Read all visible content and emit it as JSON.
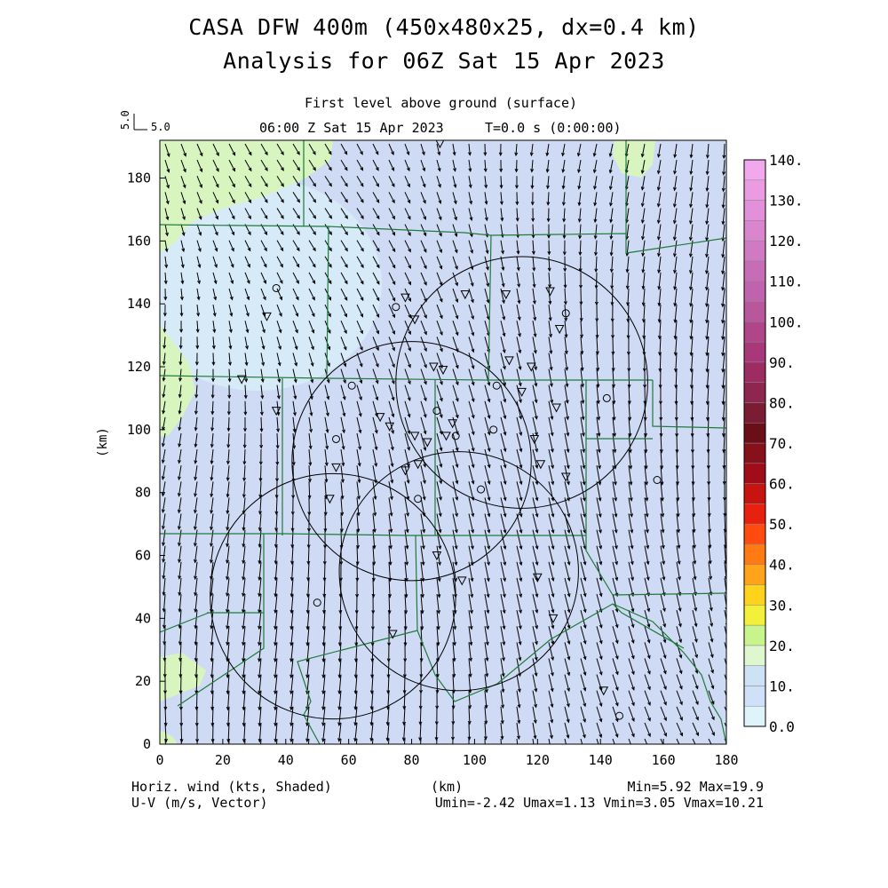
{
  "title_line1": "CASA DFW 400m (450x480x25, dx=0.4 km)",
  "title_line2": "Analysis for 06Z Sat 15 Apr 2023",
  "level_label": "First level above ground (surface)",
  "time_label": "06:00 Z Sat 15 Apr 2023",
  "time_step": "T=0.0 s (0:00:00)",
  "ref_vector": {
    "axis_value": "5.0",
    "label": "5.0"
  },
  "x_axis": {
    "label": "(km)",
    "ticks": [
      "0",
      "20",
      "40",
      "60",
      "80",
      "100",
      "120",
      "140",
      "160",
      "180"
    ],
    "range": [
      0,
      180
    ]
  },
  "y_axis": {
    "label": "(km)",
    "ticks": [
      "0",
      "20",
      "40",
      "60",
      "80",
      "100",
      "120",
      "140",
      "160",
      "180"
    ],
    "range": [
      0,
      192
    ]
  },
  "colorbar": {
    "ticks": [
      "0.0",
      "10.",
      "20.",
      "30.",
      "40.",
      "50.",
      "60.",
      "70.",
      "80.",
      "90.",
      "100.",
      "110.",
      "120.",
      "130.",
      "140."
    ],
    "colors": [
      "#dff3fb",
      "#cfe0f8",
      "#cde2f5",
      "#dff7cf",
      "#c8f48c",
      "#f2f03a",
      "#ffd21c",
      "#ffa31a",
      "#ff7a12",
      "#ff4a10",
      "#e82010",
      "#c81410",
      "#a00d18",
      "#86111a",
      "#6a0e18",
      "#7a1c34",
      "#8e2650",
      "#9c2c62",
      "#a8387a",
      "#b0458a",
      "#b8579c",
      "#c062ad",
      "#c86cb8",
      "#d07ac4",
      "#da86cf",
      "#e290d9",
      "#ea9be2",
      "#f2a8ec"
    ]
  },
  "footer_left_1": "Horiz. wind (kts, Shaded)",
  "footer_left_2": "U-V (m/s, Vector)",
  "footer_center": "(km)",
  "footer_right_1": "Min=5.92 Max=19.9",
  "footer_right_2": "Umin=-2.42 Umax=1.13 Vmin=3.05 Vmax=10.21",
  "field": {
    "min": 5.92,
    "max": 19.9,
    "umin": -2.42,
    "umax": 1.13,
    "vmin": 3.05,
    "vmax": 10.21
  },
  "field_colors": {
    "base": "#cfdaf5",
    "light": "#d6eaf8",
    "green": "#d8f5c0",
    "boundary": "#1f7a3a",
    "vectors": "#000000"
  },
  "radar_rings": [
    {
      "cx": 115,
      "cy": 115,
      "r": 40
    },
    {
      "cx": 80,
      "cy": 90,
      "r": 38
    },
    {
      "cx": 95,
      "cy": 55,
      "r": 38
    },
    {
      "cx": 55,
      "cy": 47,
      "r": 39
    }
  ],
  "stations": [
    {
      "x": 37,
      "y": 145,
      "s": "circle"
    },
    {
      "x": 34,
      "y": 136,
      "s": "tri"
    },
    {
      "x": 26,
      "y": 116,
      "s": "tri"
    },
    {
      "x": 37,
      "y": 106,
      "s": "tri"
    },
    {
      "x": 61,
      "y": 114,
      "s": "circle"
    },
    {
      "x": 56,
      "y": 97,
      "s": "circle"
    },
    {
      "x": 56,
      "y": 88,
      "s": "tri"
    },
    {
      "x": 54,
      "y": 78,
      "s": "tri"
    },
    {
      "x": 50,
      "y": 45,
      "s": "circle"
    },
    {
      "x": 74,
      "y": 35,
      "s": "tri"
    },
    {
      "x": 75,
      "y": 139,
      "s": "circle"
    },
    {
      "x": 78,
      "y": 142,
      "s": "tri"
    },
    {
      "x": 81,
      "y": 135,
      "s": "tri"
    },
    {
      "x": 87,
      "y": 120,
      "s": "tri"
    },
    {
      "x": 90,
      "y": 119,
      "s": "tri"
    },
    {
      "x": 70,
      "y": 104,
      "s": "tri"
    },
    {
      "x": 73,
      "y": 101,
      "s": "tri"
    },
    {
      "x": 81,
      "y": 98,
      "s": "tri"
    },
    {
      "x": 88,
      "y": 106,
      "s": "circle"
    },
    {
      "x": 93,
      "y": 102,
      "s": "tri"
    },
    {
      "x": 91,
      "y": 98,
      "s": "tri"
    },
    {
      "x": 94,
      "y": 98,
      "s": "circle"
    },
    {
      "x": 78,
      "y": 87,
      "s": "tri"
    },
    {
      "x": 82,
      "y": 89,
      "s": "tri"
    },
    {
      "x": 82,
      "y": 78,
      "s": "circle"
    },
    {
      "x": 97,
      "y": 143,
      "s": "tri"
    },
    {
      "x": 106,
      "y": 100,
      "s": "circle"
    },
    {
      "x": 107,
      "y": 114,
      "s": "circle"
    },
    {
      "x": 110,
      "y": 143,
      "s": "tri"
    },
    {
      "x": 111,
      "y": 122,
      "s": "tri"
    },
    {
      "x": 115,
      "y": 112,
      "s": "tri"
    },
    {
      "x": 118,
      "y": 120,
      "s": "tri"
    },
    {
      "x": 119,
      "y": 97,
      "s": "tri"
    },
    {
      "x": 121,
      "y": 89,
      "s": "tri"
    },
    {
      "x": 124,
      "y": 144,
      "s": "tri"
    },
    {
      "x": 127,
      "y": 132,
      "s": "tri"
    },
    {
      "x": 129,
      "y": 137,
      "s": "circle"
    },
    {
      "x": 126,
      "y": 107,
      "s": "tri"
    },
    {
      "x": 129,
      "y": 85,
      "s": "tri"
    },
    {
      "x": 102,
      "y": 81,
      "s": "circle"
    },
    {
      "x": 88,
      "y": 60,
      "s": "tri"
    },
    {
      "x": 96,
      "y": 52,
      "s": "tri"
    },
    {
      "x": 120,
      "y": 53,
      "s": "tri"
    },
    {
      "x": 125,
      "y": 40,
      "s": "tri"
    },
    {
      "x": 142,
      "y": 110,
      "s": "circle"
    },
    {
      "x": 158,
      "y": 84,
      "s": "circle"
    },
    {
      "x": 141,
      "y": 17,
      "s": "tri"
    },
    {
      "x": 146,
      "y": 9,
      "s": "circle"
    },
    {
      "x": 89,
      "y": 191,
      "s": "tri"
    },
    {
      "x": 85,
      "y": 96,
      "s": "tri"
    }
  ]
}
